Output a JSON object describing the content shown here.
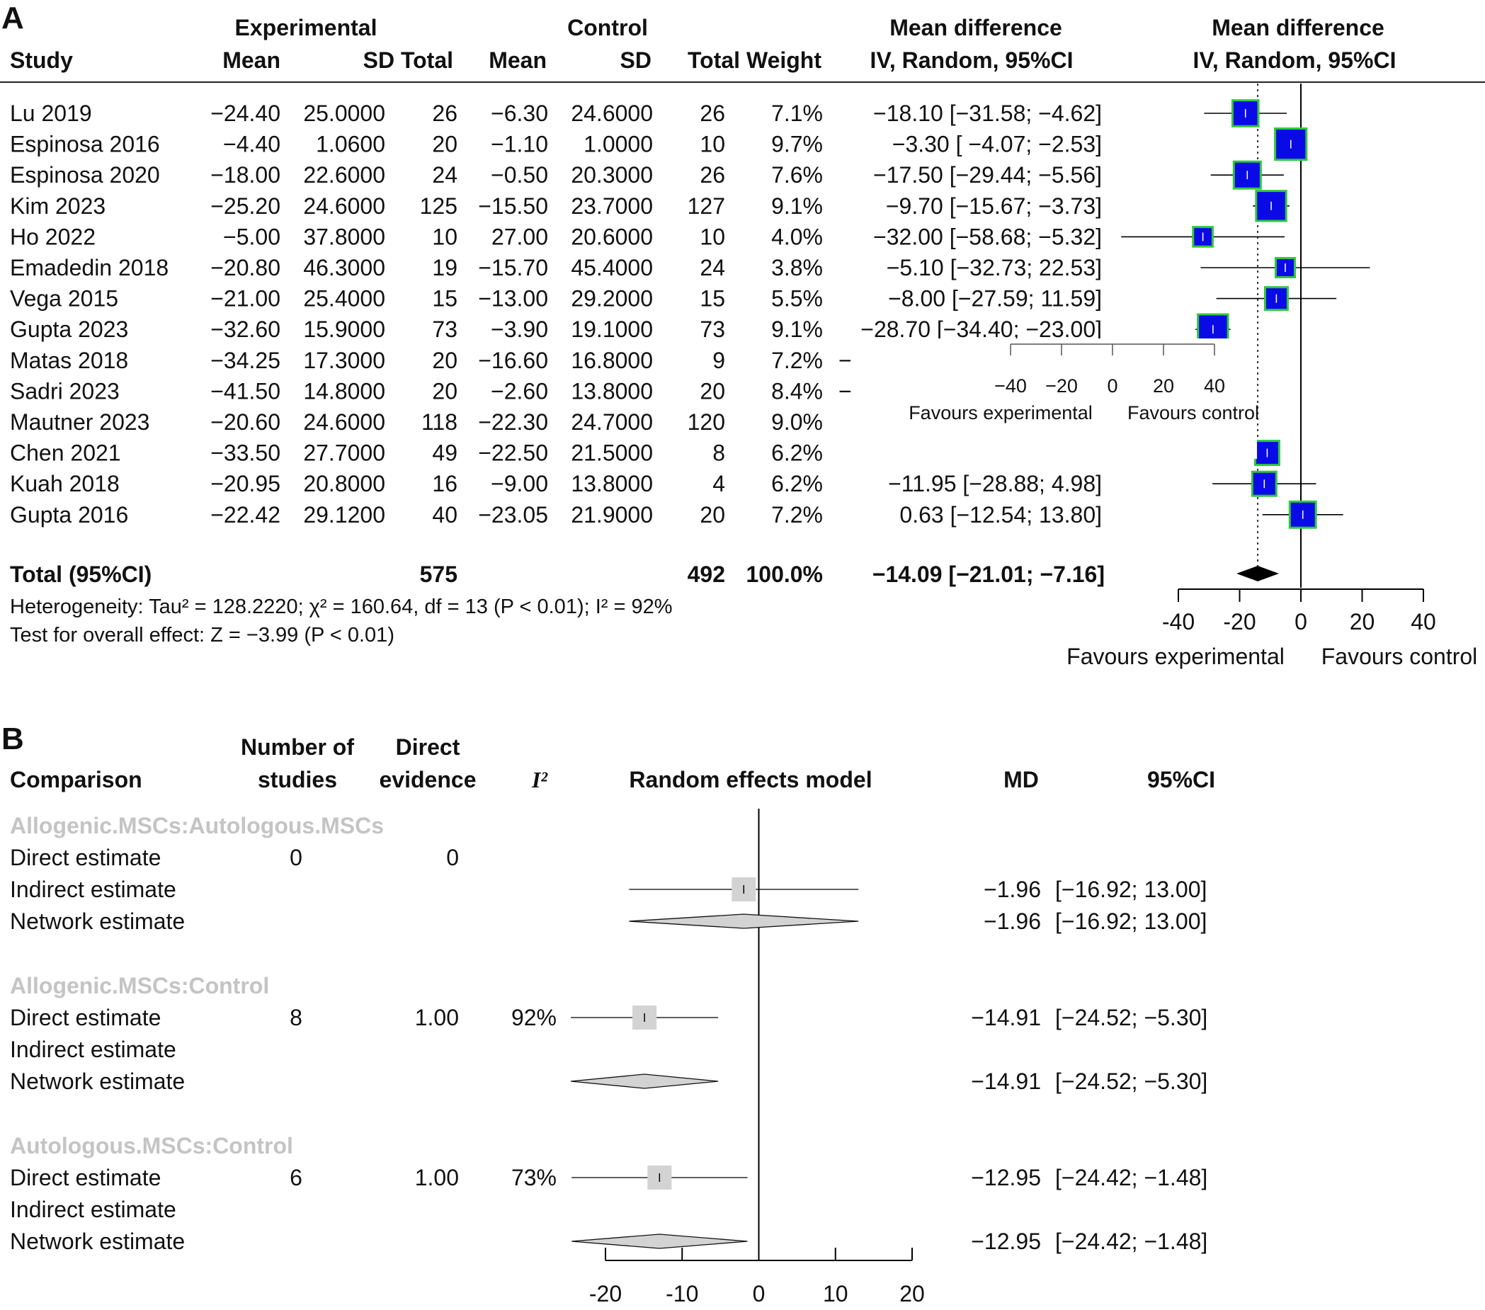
{
  "panels": [
    {
      "letter": "A"
    },
    {
      "letter": "B"
    }
  ],
  "panel_a": {
    "group_headers": {
      "experimental": "Experimental",
      "control": "Control",
      "md_text": "Mean difference",
      "md_plot": "Mean difference"
    },
    "col_headers": {
      "study": "Study",
      "e_mean": "Mean",
      "e_sd_total": "SD Total",
      "c_mean": "Mean",
      "c_sd": "SD",
      "total_weight": "Total Weight",
      "md_text": "IV, Random, 95%CI",
      "md_plot": "IV, Random, 95%CI"
    },
    "rows": [
      {
        "study": "Lu 2019",
        "e_mean": "−24.40",
        "e_sd": "25.0000",
        "e_total": "26",
        "c_mean": "−6.30",
        "c_sd": "24.6000",
        "c_total": "26",
        "weight": "7.1%",
        "ci_text": "−18.10 [−31.58;  −4.62]"
      },
      {
        "study": "Espinosa 2016",
        "e_mean": "−4.40",
        "e_sd": "1.0600",
        "e_total": "20",
        "c_mean": "−1.10",
        "c_sd": "1.0000",
        "c_total": "10",
        "weight": "9.7%",
        "ci_text": "−3.30 [ −4.07;  −2.53]"
      },
      {
        "study": "Espinosa 2020",
        "e_mean": "−18.00",
        "e_sd": "22.6000",
        "e_total": "24",
        "c_mean": "−0.50",
        "c_sd": "20.3000",
        "c_total": "26",
        "weight": "7.6%",
        "ci_text": "−17.50 [−29.44;  −5.56]"
      },
      {
        "study": "Kim 2023",
        "e_mean": "−25.20",
        "e_sd": "24.6000",
        "e_total": "125",
        "c_mean": "−15.50",
        "c_sd": "23.7000",
        "c_total": "127",
        "weight": "9.1%",
        "ci_text": "−9.70 [−15.67;  −3.73]"
      },
      {
        "study": "Ho 2022",
        "e_mean": "−5.00",
        "e_sd": "37.8000",
        "e_total": "10",
        "c_mean": "27.00",
        "c_sd": "20.6000",
        "c_total": "10",
        "weight": "4.0%",
        "ci_text": "−32.00 [−58.68;  −5.32]"
      },
      {
        "study": "Emadedin 2018",
        "e_mean": "−20.80",
        "e_sd": "46.3000",
        "e_total": "19",
        "c_mean": "−15.70",
        "c_sd": "45.4000",
        "c_total": "24",
        "weight": "3.8%",
        "ci_text": "−5.10 [−32.73;  22.53]"
      },
      {
        "study": "Vega 2015",
        "e_mean": "−21.00",
        "e_sd": "25.4000",
        "e_total": "15",
        "c_mean": "−13.00",
        "c_sd": "29.2000",
        "c_total": "15",
        "weight": "5.5%",
        "ci_text": "−8.00 [−27.59;  11.59]"
      },
      {
        "study": "Gupta 2023",
        "e_mean": "−32.60",
        "e_sd": "15.9000",
        "e_total": "73",
        "c_mean": "−3.90",
        "c_sd": "19.1000",
        "c_total": "73",
        "weight": "9.1%",
        "ci_text": "−28.70 [−34.40; −23.00]"
      },
      {
        "study": "Matas 2018",
        "e_mean": "−34.25",
        "e_sd": "17.3000",
        "e_total": "20",
        "c_mean": "−16.60",
        "c_sd": "16.8000",
        "c_total": "9",
        "weight": "7.2%",
        "ci_text": "−"
      },
      {
        "study": "Sadri 2023",
        "e_mean": "−41.50",
        "e_sd": "14.8000",
        "e_total": "20",
        "c_mean": "−2.60",
        "c_sd": "13.8000",
        "c_total": "20",
        "weight": "8.4%",
        "ci_text": "−"
      },
      {
        "study": "Mautner 2023",
        "e_mean": "−20.60",
        "e_sd": "24.6000",
        "e_total": "118",
        "c_mean": "−22.30",
        "c_sd": "24.7000",
        "c_total": "120",
        "weight": "9.0%",
        "ci_text": ""
      },
      {
        "study": "Chen 2021",
        "e_mean": "−33.50",
        "e_sd": "27.7000",
        "e_total": "49",
        "c_mean": "−22.50",
        "c_sd": "21.5000",
        "c_total": "8",
        "weight": "6.2%",
        "ci_text": ""
      },
      {
        "study": "Kuah 2018",
        "e_mean": "−20.95",
        "e_sd": "20.8000",
        "e_total": "16",
        "c_mean": "−9.00",
        "c_sd": "13.8000",
        "c_total": "4",
        "weight": "6.2%",
        "ci_text": "−11.95 [−28.88;   4.98]"
      },
      {
        "study": "Gupta 2016",
        "e_mean": "−22.42",
        "e_sd": "29.1200",
        "e_total": "40",
        "c_mean": "−23.05",
        "c_sd": "21.9000",
        "c_total": "20",
        "weight": "7.2%",
        "ci_text": "0.63 [−12.54;  13.80]"
      }
    ],
    "total": {
      "label": "Total (95%CI)",
      "e_total": "575",
      "c_total": "492",
      "weight": "100.0%",
      "ci_text": "−14.09 [−21.01;  −7.16]"
    },
    "heterogeneity_text": "Heterogeneity: Tau² = 128.2220;  χ² = 160.64, df = 13 (P < 0.01); I² = 92%",
    "overall_text": "Test for overall effect: Z = −3.99 (P < 0.01)",
    "axis_ticks": [
      "-40",
      "-20",
      "0",
      "20",
      "40"
    ],
    "favours_left": "Favours experimental",
    "favours_right": "Favours control",
    "inset": {
      "ticks": [
        "−40",
        "−20",
        "0",
        "20",
        "40"
      ],
      "favours_left": "Favours experimental",
      "favours_right": "Favours control"
    }
  },
  "panel_b": {
    "headers": {
      "comparison": "Comparison",
      "n_studies_1": "Number of",
      "n_studies_2": "studies",
      "direct_1": "Direct",
      "direct_2": "evidence",
      "i2": "I²",
      "model": "Random effects model",
      "md": "MD",
      "ci": "95%CI"
    },
    "groups": [
      {
        "title": "Allogenic.MSCs:Autologous.MSCs",
        "rows": [
          {
            "label": "Direct estimate",
            "n": "0",
            "direct": "0",
            "i2": "",
            "md": "",
            "ci": ""
          },
          {
            "label": "Indirect estimate",
            "n": "",
            "direct": "",
            "i2": "",
            "md": "−1.96",
            "ci": "[−16.92; 13.00]"
          },
          {
            "label": "Network estimate",
            "n": "",
            "direct": "",
            "i2": "",
            "md": "−1.96",
            "ci": "[−16.92; 13.00]"
          }
        ]
      },
      {
        "title": "Allogenic.MSCs:Control",
        "rows": [
          {
            "label": "Direct estimate",
            "n": "8",
            "direct": "1.00",
            "i2": "92%",
            "md": "−14.91",
            "ci": "[−24.52; −5.30]"
          },
          {
            "label": "Indirect estimate",
            "n": "",
            "direct": "",
            "i2": "",
            "md": "",
            "ci": ""
          },
          {
            "label": "Network estimate",
            "n": "",
            "direct": "",
            "i2": "",
            "md": "−14.91",
            "ci": "[−24.52; −5.30]"
          }
        ]
      },
      {
        "title": "Autologous.MSCs:Control",
        "rows": [
          {
            "label": "Direct estimate",
            "n": "6",
            "direct": "1.00",
            "i2": "73%",
            "md": "−12.95",
            "ci": "[−24.42; −1.48]"
          },
          {
            "label": "Indirect estimate",
            "n": "",
            "direct": "",
            "i2": "",
            "md": "",
            "ci": ""
          },
          {
            "label": "Network estimate",
            "n": "",
            "direct": "",
            "i2": "",
            "md": "−12.95",
            "ci": "[−24.42; −1.48]"
          }
        ]
      }
    ],
    "axis_ticks": [
      "-20",
      "-10",
      "0",
      "10",
      "20"
    ]
  },
  "chart_data": [
    {
      "type": "forest",
      "panel": "A",
      "xlim": [
        -40,
        40
      ],
      "ticks": [
        -40,
        -20,
        0,
        20,
        40
      ],
      "colors": {
        "box": "#0a0ae6",
        "box_border": "#2ec83c",
        "diamond": "#000000"
      },
      "studies": [
        {
          "md": -18.1,
          "lo": -31.58,
          "hi": -4.62,
          "weight": 7.1
        },
        {
          "md": -3.3,
          "lo": -4.07,
          "hi": -2.53,
          "weight": 9.7
        },
        {
          "md": -17.5,
          "lo": -29.44,
          "hi": -5.56,
          "weight": 7.6
        },
        {
          "md": -9.7,
          "lo": -15.67,
          "hi": -3.73,
          "weight": 9.1
        },
        {
          "md": -32.0,
          "lo": -58.68,
          "hi": -5.32,
          "weight": 4.0
        },
        {
          "md": -5.1,
          "lo": -32.73,
          "hi": 22.53,
          "weight": 3.8
        },
        {
          "md": -8.0,
          "lo": -27.59,
          "hi": 11.59,
          "weight": 5.5
        },
        {
          "md": -28.7,
          "lo": -34.4,
          "hi": -23.0,
          "weight": 9.1
        },
        null,
        null,
        null,
        {
          "md": -11.0,
          "lo": null,
          "hi": null,
          "weight": 6.2
        },
        {
          "md": -11.95,
          "lo": -28.88,
          "hi": 4.98,
          "weight": 6.2
        },
        {
          "md": 0.63,
          "lo": -12.54,
          "hi": 13.8,
          "weight": 7.2
        }
      ],
      "pooled": {
        "md": -14.09,
        "lo": -21.01,
        "hi": -7.16
      }
    },
    {
      "type": "forest",
      "panel": "B",
      "xlim": [
        -20,
        20
      ],
      "ticks": [
        -20,
        -10,
        0,
        10,
        20
      ],
      "colors": {
        "box": "#d3d3d3",
        "diamond": "#d3d3d3"
      },
      "groups": [
        {
          "direct": null,
          "indirect": {
            "md": -1.96,
            "lo": -16.92,
            "hi": 13.0
          },
          "network": {
            "md": -1.96,
            "lo": -16.92,
            "hi": 13.0
          }
        },
        {
          "direct": {
            "md": -14.91,
            "lo": -24.52,
            "hi": -5.3
          },
          "indirect": null,
          "network": {
            "md": -14.91,
            "lo": -24.52,
            "hi": -5.3
          }
        },
        {
          "direct": {
            "md": -12.95,
            "lo": -24.42,
            "hi": -1.48
          },
          "indirect": null,
          "network": {
            "md": -12.95,
            "lo": -24.42,
            "hi": -1.48
          }
        }
      ]
    }
  ]
}
